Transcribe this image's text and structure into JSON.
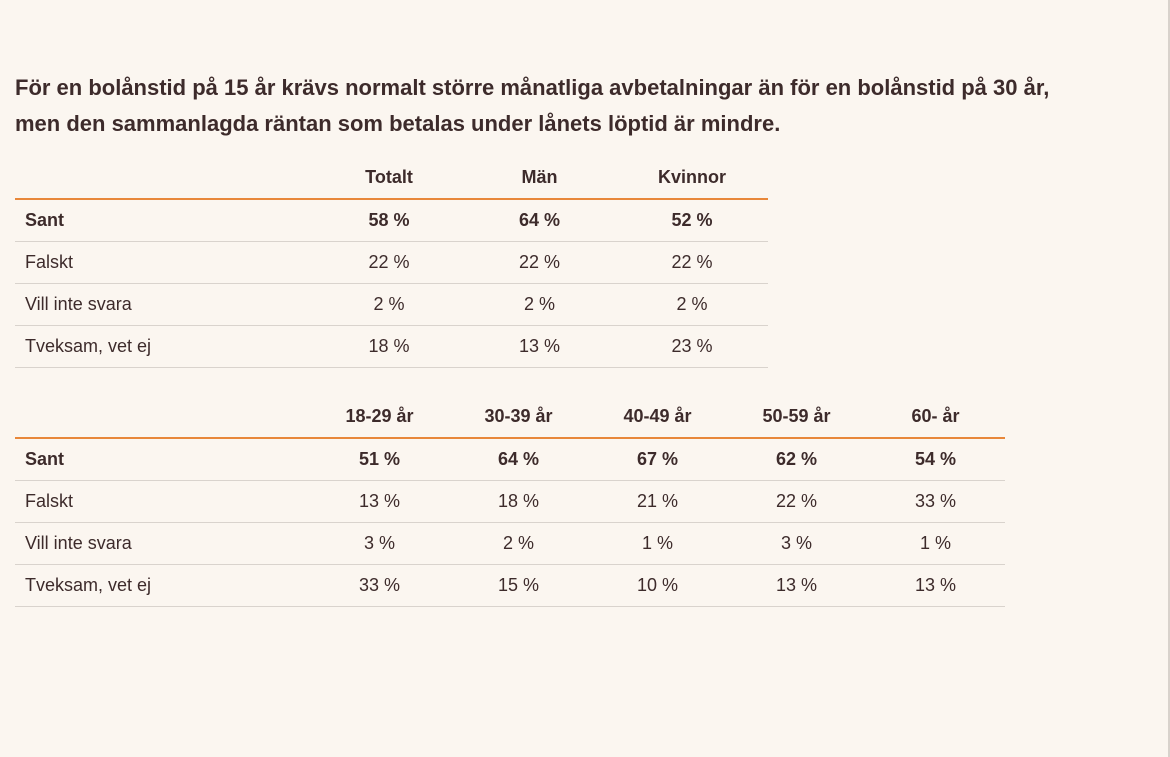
{
  "question": {
    "line1": "För en bolånstid på 15 år krävs normalt större månatliga avbetalningar än för en bolånstid på 30 år,",
    "line2": "men den sammanlagda räntan som betalas under lånets löptid är mindre."
  },
  "gender_table": {
    "columns": [
      "Totalt",
      "Män",
      "Kvinnor"
    ],
    "rows": [
      {
        "label": "Sant",
        "values": [
          "58 %",
          "64 %",
          "52 %"
        ]
      },
      {
        "label": "Falskt",
        "values": [
          "22 %",
          "22 %",
          "22 %"
        ]
      },
      {
        "label": "Vill inte svara",
        "values": [
          "2 %",
          "2 %",
          "2 %"
        ]
      },
      {
        "label": "Tveksam, vet ej",
        "values": [
          "18 %",
          "13 %",
          "23 %"
        ]
      }
    ]
  },
  "age_table": {
    "columns": [
      "18-29 år",
      "30-39 år",
      "40-49 år",
      "50-59 år",
      "60- år"
    ],
    "rows": [
      {
        "label": "Sant",
        "values": [
          "51 %",
          "64 %",
          "67 %",
          "62 %",
          "54 %"
        ]
      },
      {
        "label": "Falskt",
        "values": [
          "13 %",
          "18 %",
          "21 %",
          "22 %",
          "33 %"
        ]
      },
      {
        "label": "Vill inte svara",
        "values": [
          "3 %",
          "2 %",
          "1 %",
          "3 %",
          "1 %"
        ]
      },
      {
        "label": "Tveksam, vet ej",
        "values": [
          "33 %",
          "15 %",
          "10 %",
          "13 %",
          "13 %"
        ]
      }
    ]
  },
  "colors": {
    "background": "#fbf6f0",
    "text": "#3d2b2b",
    "accent_rule": "#e8873a",
    "row_rule": "#d9d3cd"
  }
}
